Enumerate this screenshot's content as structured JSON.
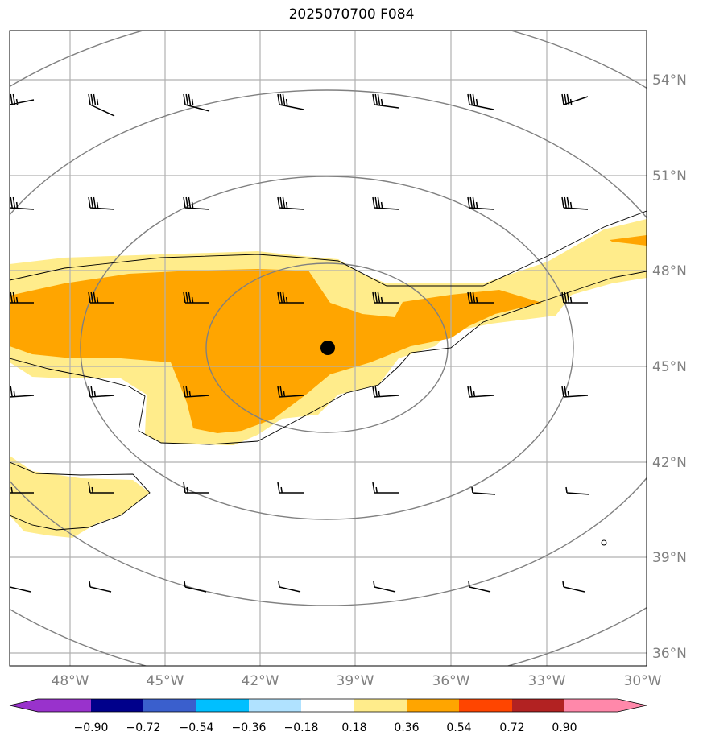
{
  "title": "2025070700 F084",
  "map": {
    "lon_range": [
      -50,
      -30
    ],
    "lat_range": [
      35.5,
      55.5
    ],
    "lon_ticks": [
      {
        "value": -48,
        "label": "48°W"
      },
      {
        "value": -45,
        "label": "45°W"
      },
      {
        "value": -42,
        "label": "42°W"
      },
      {
        "value": -39,
        "label": "39°W"
      },
      {
        "value": -36,
        "label": "36°W"
      },
      {
        "value": -33,
        "label": "33°W"
      },
      {
        "value": -30,
        "label": "30°W"
      }
    ],
    "lat_ticks": [
      {
        "value": 54,
        "label": "54°N"
      },
      {
        "value": 51,
        "label": "51°N"
      },
      {
        "value": 48,
        "label": "48°N"
      },
      {
        "value": 45,
        "label": "45°N"
      },
      {
        "value": 42,
        "label": "42°N"
      },
      {
        "value": 39,
        "label": "39°N"
      },
      {
        "value": 36,
        "label": "36°N"
      }
    ],
    "center_marker": {
      "lon": -39.9,
      "lat": 46.1
    },
    "grid_color": "#b0b0b0",
    "label_color": "#808080"
  },
  "colorbar": {
    "labels": [
      "−0.90",
      "−0.72",
      "−0.54",
      "−0.36",
      "−0.18",
      "0.18",
      "0.36",
      "0.54",
      "0.72",
      "0.90"
    ],
    "colors": [
      "#9932cc",
      "#00008b",
      "#3a5fcd",
      "#00bfff",
      "#b0e2ff",
      "#ffffff",
      "#ffec8b",
      "#ffa500",
      "#ff4500",
      "#b22222",
      "#ff88aa"
    ]
  },
  "fill_colors": {
    "light": "#ffec8b",
    "orange": "#ffa500"
  }
}
